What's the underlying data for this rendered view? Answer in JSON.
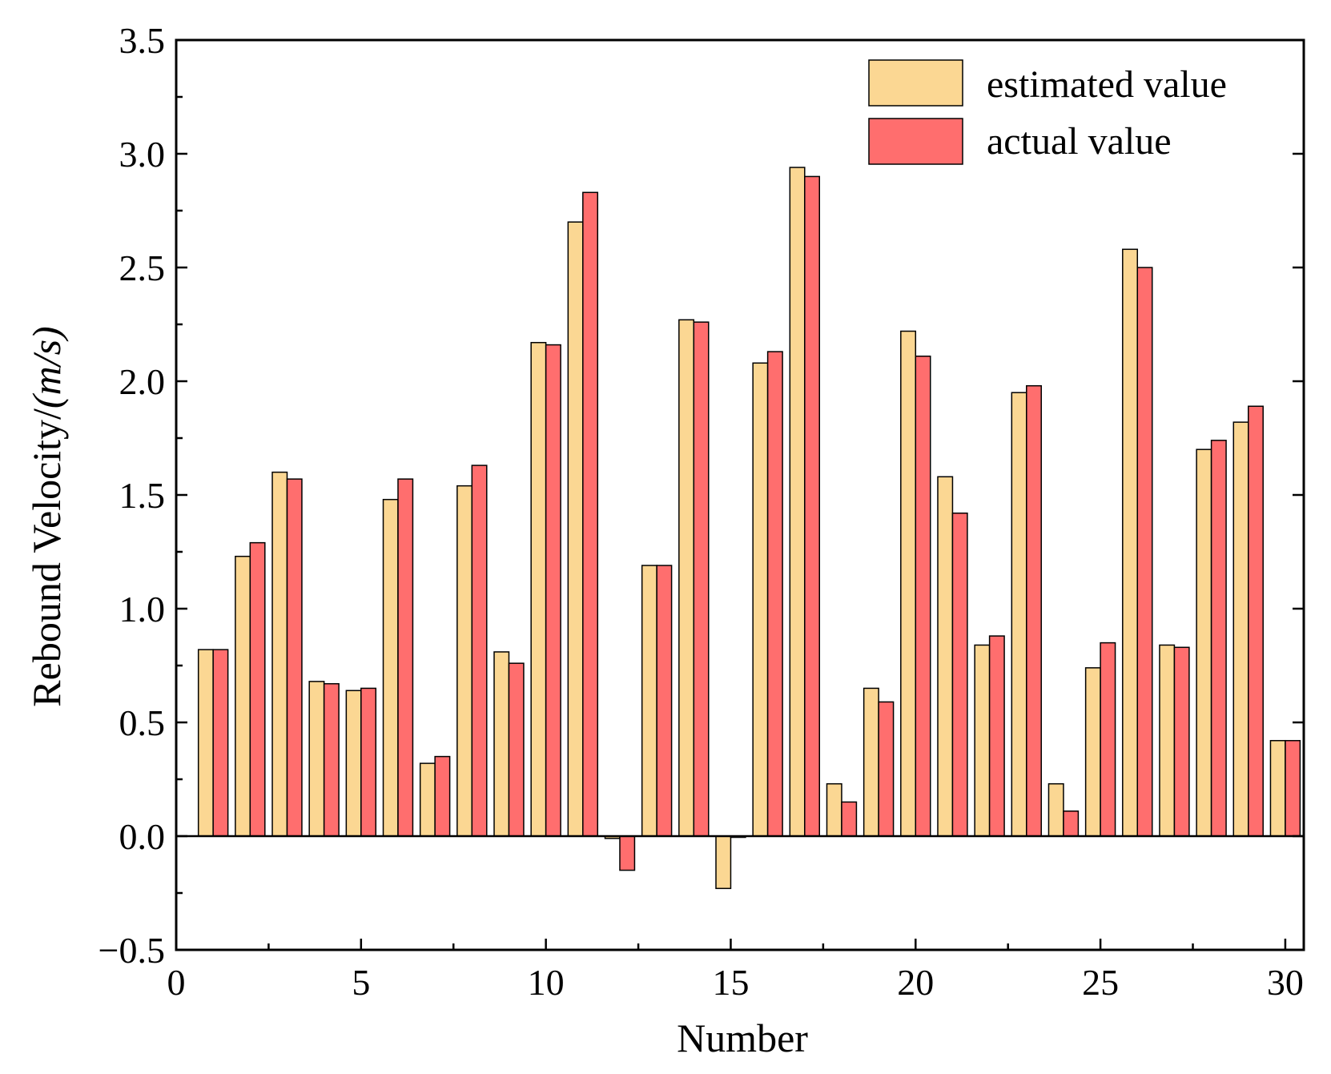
{
  "chart_data": {
    "type": "bar",
    "xlabel": "Number",
    "ylabel_main": "Rebound Velocity/",
    "ylabel_unit": "(m/s)",
    "xlim": [
      0,
      30.5
    ],
    "ylim": [
      -0.5,
      3.5
    ],
    "x_ticks": [
      0,
      5,
      10,
      15,
      20,
      25,
      30
    ],
    "x_tick_labels": [
      "0",
      "5",
      "10",
      "15",
      "20",
      "25",
      "30"
    ],
    "y_ticks": [
      -0.5,
      0.0,
      0.5,
      1.0,
      1.5,
      2.0,
      2.5,
      3.0,
      3.5
    ],
    "y_tick_labels": [
      "−0.5",
      "0.0",
      "0.5",
      "1.0",
      "1.5",
      "2.0",
      "2.5",
      "3.0",
      "3.5"
    ],
    "legend_position": "top-right",
    "categories": [
      1,
      2,
      3,
      4,
      5,
      6,
      7,
      8,
      9,
      10,
      11,
      12,
      13,
      14,
      15,
      16,
      17,
      18,
      19,
      20,
      21,
      22,
      23,
      24,
      25,
      26,
      27,
      28,
      29,
      30
    ],
    "series": [
      {
        "name": "estimated value",
        "color": "#FBD793",
        "values": [
          0.82,
          1.23,
          1.6,
          0.68,
          0.64,
          1.48,
          0.32,
          1.54,
          0.81,
          2.17,
          2.7,
          -0.01,
          1.19,
          2.27,
          -0.23,
          2.08,
          2.94,
          0.23,
          0.65,
          2.22,
          1.58,
          0.84,
          1.95,
          0.23,
          0.74,
          2.58,
          0.84,
          1.7,
          1.82,
          0.42
        ]
      },
      {
        "name": "actual value",
        "color": "#FF6E6E",
        "values": [
          0.82,
          1.29,
          1.57,
          0.67,
          0.65,
          1.57,
          0.35,
          1.63,
          0.76,
          2.16,
          2.83,
          -0.15,
          1.19,
          2.26,
          0.0,
          2.13,
          2.9,
          0.15,
          0.59,
          2.11,
          1.42,
          0.88,
          1.98,
          0.11,
          0.85,
          2.5,
          0.83,
          1.74,
          1.89,
          0.42
        ]
      }
    ]
  }
}
